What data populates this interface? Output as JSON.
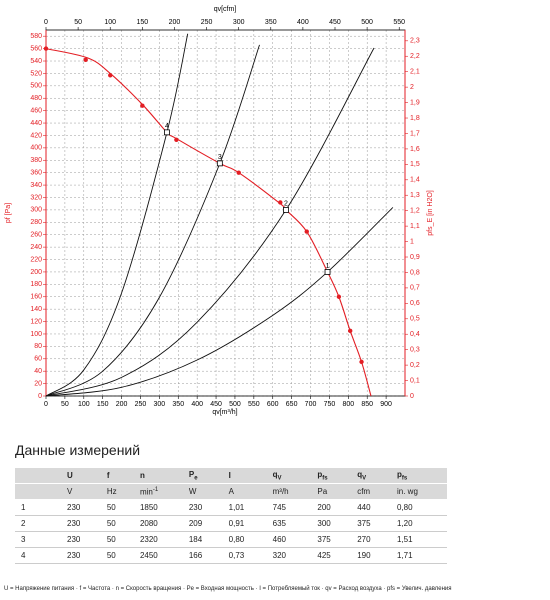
{
  "chart_data": {
    "type": "line",
    "x_label": "qv[m³/h]",
    "x2_label": "qv[cfm]",
    "y_label": "pf [Pa]",
    "y2_label": "pfs_E [in H2O]",
    "xlim": [
      0,
      950
    ],
    "xticks": [
      0,
      50,
      100,
      150,
      200,
      250,
      300,
      350,
      400,
      450,
      500,
      550,
      600,
      650,
      700,
      750,
      800,
      850,
      900
    ],
    "x2lim": [
      0,
      559
    ],
    "x2ticks": [
      0,
      50,
      100,
      150,
      200,
      250,
      300,
      350,
      400,
      450,
      500,
      550
    ],
    "ylim": [
      0,
      590
    ],
    "yticks": [
      0,
      20,
      40,
      60,
      80,
      100,
      120,
      140,
      160,
      180,
      200,
      220,
      240,
      260,
      280,
      300,
      320,
      340,
      360,
      380,
      400,
      420,
      440,
      460,
      480,
      500,
      520,
      540,
      560,
      580
    ],
    "y2lim": [
      0,
      2.37
    ],
    "y2ticks": [
      {
        "value": 0,
        "label": "0"
      },
      {
        "value": 0.1,
        "label": "0,1"
      },
      {
        "value": 0.2,
        "label": "0,2"
      },
      {
        "value": 0.3,
        "label": "0,3"
      },
      {
        "value": 0.4,
        "label": "0,4"
      },
      {
        "value": 0.5,
        "label": "0,5"
      },
      {
        "value": 0.6,
        "label": "0,6"
      },
      {
        "value": 0.7,
        "label": "0,7"
      },
      {
        "value": 0.8,
        "label": "0,8"
      },
      {
        "value": 0.9,
        "label": "0,9"
      },
      {
        "value": 1,
        "label": "1"
      },
      {
        "value": 1.1,
        "label": "1,1"
      },
      {
        "value": 1.2,
        "label": "1,2"
      },
      {
        "value": 1.3,
        "label": "1,3"
      },
      {
        "value": 1.4,
        "label": "1,4"
      },
      {
        "value": 1.5,
        "label": "1,5"
      },
      {
        "value": 1.6,
        "label": "1,6"
      },
      {
        "value": 1.7,
        "label": "1,7"
      },
      {
        "value": 1.8,
        "label": "1,8"
      },
      {
        "value": 1.9,
        "label": "1,9"
      },
      {
        "value": 2,
        "label": "2"
      },
      {
        "value": 2.1,
        "label": "2,1"
      },
      {
        "value": 2.2,
        "label": "2,2"
      },
      {
        "value": 2.3,
        "label": "2,3"
      }
    ],
    "grid": true,
    "axis_color": "#e31e24",
    "series": [
      {
        "color": "#e31e24",
        "x": [
          0,
          110,
          170,
          255,
          320,
          345,
          460,
          510,
          620,
          635,
          690,
          745,
          775,
          805,
          835,
          860
        ],
        "values": [
          560,
          545,
          520,
          470,
          425,
          415,
          375,
          360,
          310,
          300,
          265,
          200,
          160,
          105,
          55,
          0
        ]
      },
      {
        "color": "#111111",
        "x": [
          0,
          200,
          400,
          600,
          745,
          918
        ],
        "values": [
          0,
          14,
          58,
          130,
          200,
          304
        ]
      },
      {
        "color": "#111111",
        "x": [
          0,
          200,
          400,
          635,
          868
        ],
        "values": [
          0,
          30,
          119,
          300,
          561
        ]
      },
      {
        "color": "#111111",
        "x": [
          0,
          150,
          300,
          460,
          565
        ],
        "values": [
          0,
          40,
          159,
          375,
          566
        ]
      },
      {
        "color": "#111111",
        "x": [
          0,
          100,
          200,
          320,
          375
        ],
        "values": [
          0,
          42,
          166,
          425,
          584
        ]
      }
    ],
    "fan_points": {
      "color": "#e31e24",
      "x": [
        0,
        105,
        170,
        255,
        345,
        510,
        620,
        690,
        775,
        805,
        835
      ],
      "values": [
        560,
        542,
        517,
        468,
        413,
        360,
        312,
        265,
        160,
        105,
        55
      ]
    },
    "operating_points": {
      "labels": [
        "1",
        "2",
        "3",
        "4"
      ],
      "x": [
        745,
        635,
        460,
        320
      ],
      "values": [
        200,
        300,
        375,
        425
      ]
    }
  },
  "measurements": {
    "title": "Данные измерений",
    "headers": [
      {
        "main": "U"
      },
      {
        "main": "f"
      },
      {
        "main": "n"
      },
      {
        "main": "P",
        "sub": "e"
      },
      {
        "main": "I"
      },
      {
        "main": "q",
        "sub": "V"
      },
      {
        "main": "p",
        "sub": "fs"
      },
      {
        "main": "q",
        "sub": "V"
      },
      {
        "main": "p",
        "sub": "fs"
      }
    ],
    "units": [
      {
        "main": "V"
      },
      {
        "main": "Hz"
      },
      {
        "main": "min",
        "sup": "-1"
      },
      {
        "main": "W"
      },
      {
        "main": "A"
      },
      {
        "main": "m³/h"
      },
      {
        "main": "Pa"
      },
      {
        "main": "cfm"
      },
      {
        "main": "in. wg"
      }
    ],
    "rows": [
      [
        "1",
        "230",
        "50",
        "1850",
        "230",
        "1,01",
        "745",
        "200",
        "440",
        "0,80"
      ],
      [
        "2",
        "230",
        "50",
        "2080",
        "209",
        "0,91",
        "635",
        "300",
        "375",
        "1,20"
      ],
      [
        "3",
        "230",
        "50",
        "2320",
        "184",
        "0,80",
        "460",
        "375",
        "270",
        "1,51"
      ],
      [
        "4",
        "230",
        "50",
        "2450",
        "166",
        "0,73",
        "320",
        "425",
        "190",
        "1,71"
      ]
    ],
    "footnote": "U = Напряжение питания · f = Частота · n = Скорость вращения · Pe = Входная мощность · I = Потребляемый ток · qv = Расход воздуха · pfs = Увелич. давления"
  }
}
